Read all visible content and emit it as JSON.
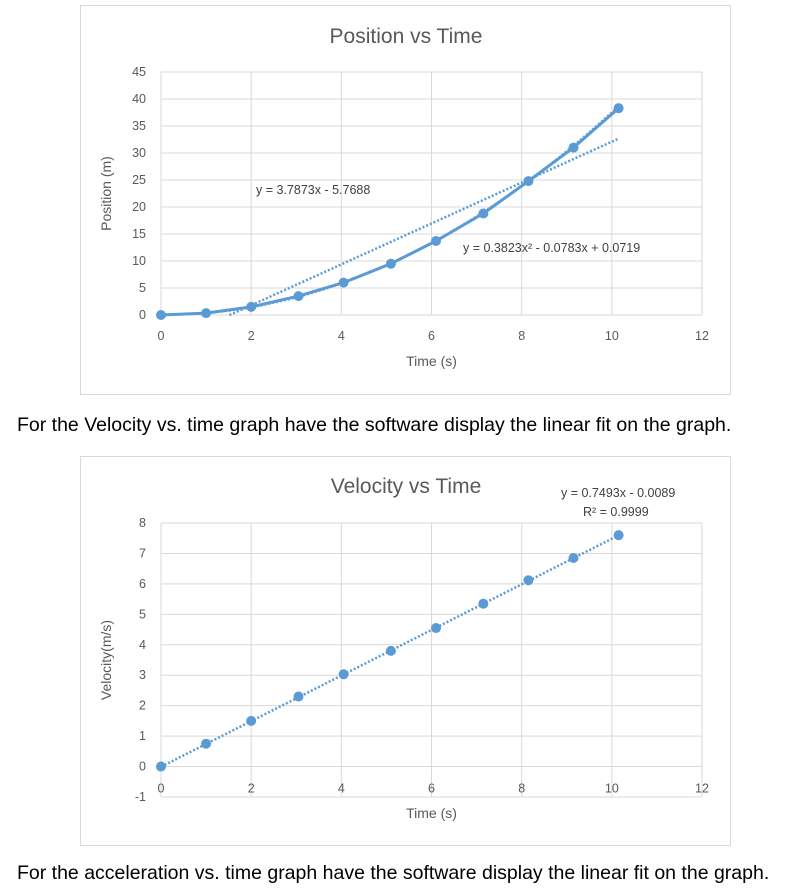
{
  "captions": {
    "velocity_instruction": "For the Velocity vs. time graph have the software display the linear fit on the graph.",
    "acceleration_instruction": "For the acceleration vs. time graph have the software display the linear fit on the graph."
  },
  "colors": {
    "series": "#5b9bd5",
    "grid": "#d9d9d9",
    "text": "#595959"
  },
  "chart_data": [
    {
      "type": "scatter",
      "title": "Position vs Time",
      "xlabel": "Time (s)",
      "ylabel": "Position (m)",
      "xlim": [
        0,
        12
      ],
      "ylim": [
        0,
        45
      ],
      "x_ticks": [
        "0",
        "2",
        "4",
        "6",
        "8",
        "10",
        "12"
      ],
      "y_ticks": [
        "0",
        "5",
        "10",
        "15",
        "20",
        "25",
        "30",
        "35",
        "40",
        "45"
      ],
      "grid": true,
      "series": [
        {
          "x": [
            0,
            1,
            2,
            3.05,
            4.05,
            5.1,
            6.1,
            7.15,
            8.15,
            9.15,
            10.15
          ],
          "y": [
            0,
            0.35,
            1.5,
            3.5,
            6.0,
            9.5,
            13.7,
            18.8,
            24.8,
            31.0,
            38.3
          ],
          "style": "markers+line"
        }
      ],
      "trendlines": [
        {
          "kind": "linear",
          "slope": 3.7873,
          "intercept": -5.7688,
          "x_range": [
            1.52,
            10.15
          ],
          "label": "y = 3.7873x - 5.7688"
        },
        {
          "kind": "polynomial",
          "coefficients": [
            0.3823,
            -0.0783,
            0.0719
          ],
          "x_range": [
            0,
            10.15
          ],
          "label": "y = 0.3823x² - 0.0783x + 0.0719"
        }
      ]
    },
    {
      "type": "scatter",
      "title": "Velocity vs Time",
      "xlabel": "Time (s)",
      "ylabel": "Velocity(m/s)",
      "xlim": [
        0,
        12
      ],
      "ylim": [
        -1,
        8
      ],
      "x_ticks": [
        "0",
        "2",
        "4",
        "6",
        "8",
        "10",
        "12"
      ],
      "y_ticks": [
        "-1",
        "0",
        "1",
        "2",
        "3",
        "4",
        "5",
        "6",
        "7",
        "8"
      ],
      "grid": true,
      "series": [
        {
          "x": [
            0,
            1,
            2,
            3.05,
            4.05,
            5.1,
            6.1,
            7.15,
            8.15,
            9.15,
            10.15
          ],
          "y": [
            0,
            0.75,
            1.5,
            2.3,
            3.03,
            3.8,
            4.55,
            5.35,
            6.12,
            6.85,
            7.6
          ],
          "style": "markers"
        }
      ],
      "trendlines": [
        {
          "kind": "linear",
          "slope": 0.7493,
          "intercept": -0.0089,
          "x_range": [
            0,
            10.15
          ],
          "label": "y = 0.7493x - 0.0089",
          "r2_label": "R² = 0.9999"
        }
      ]
    }
  ]
}
